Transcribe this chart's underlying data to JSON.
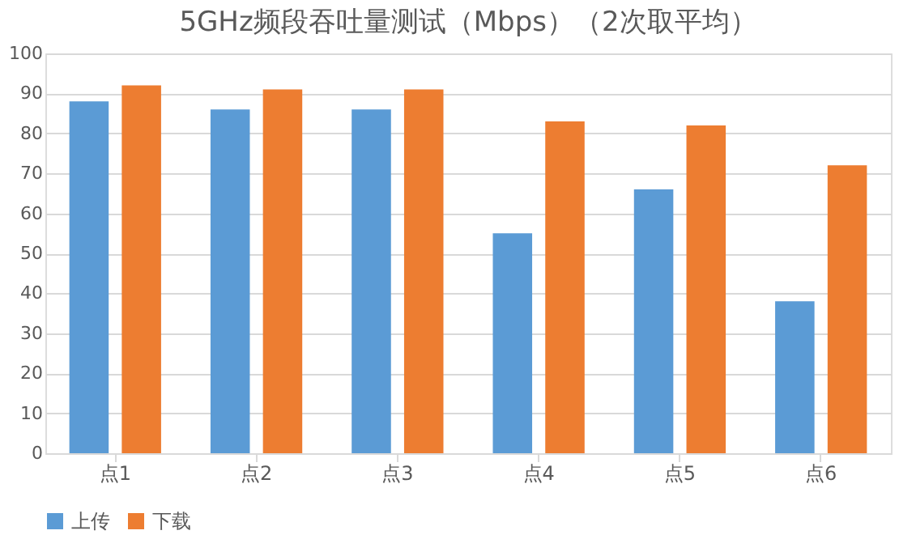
{
  "chart_data": {
    "type": "bar",
    "title": "5GHz频段吞吐量测试（Mbps）（2次取平均）",
    "categories": [
      "点1",
      "点2",
      "点3",
      "点4",
      "点5",
      "点6"
    ],
    "series": [
      {
        "name": "上传",
        "color": "#5b9bd5",
        "values": [
          88,
          86,
          86,
          55,
          66,
          38
        ]
      },
      {
        "name": "下载",
        "color": "#ed7d31",
        "values": [
          92,
          91,
          91,
          83,
          82,
          72
        ]
      }
    ],
    "ylim": [
      0,
      100
    ],
    "yticks": [
      0,
      10,
      20,
      30,
      40,
      50,
      60,
      70,
      80,
      90,
      100
    ],
    "grid": "y",
    "legend": "bottom"
  }
}
